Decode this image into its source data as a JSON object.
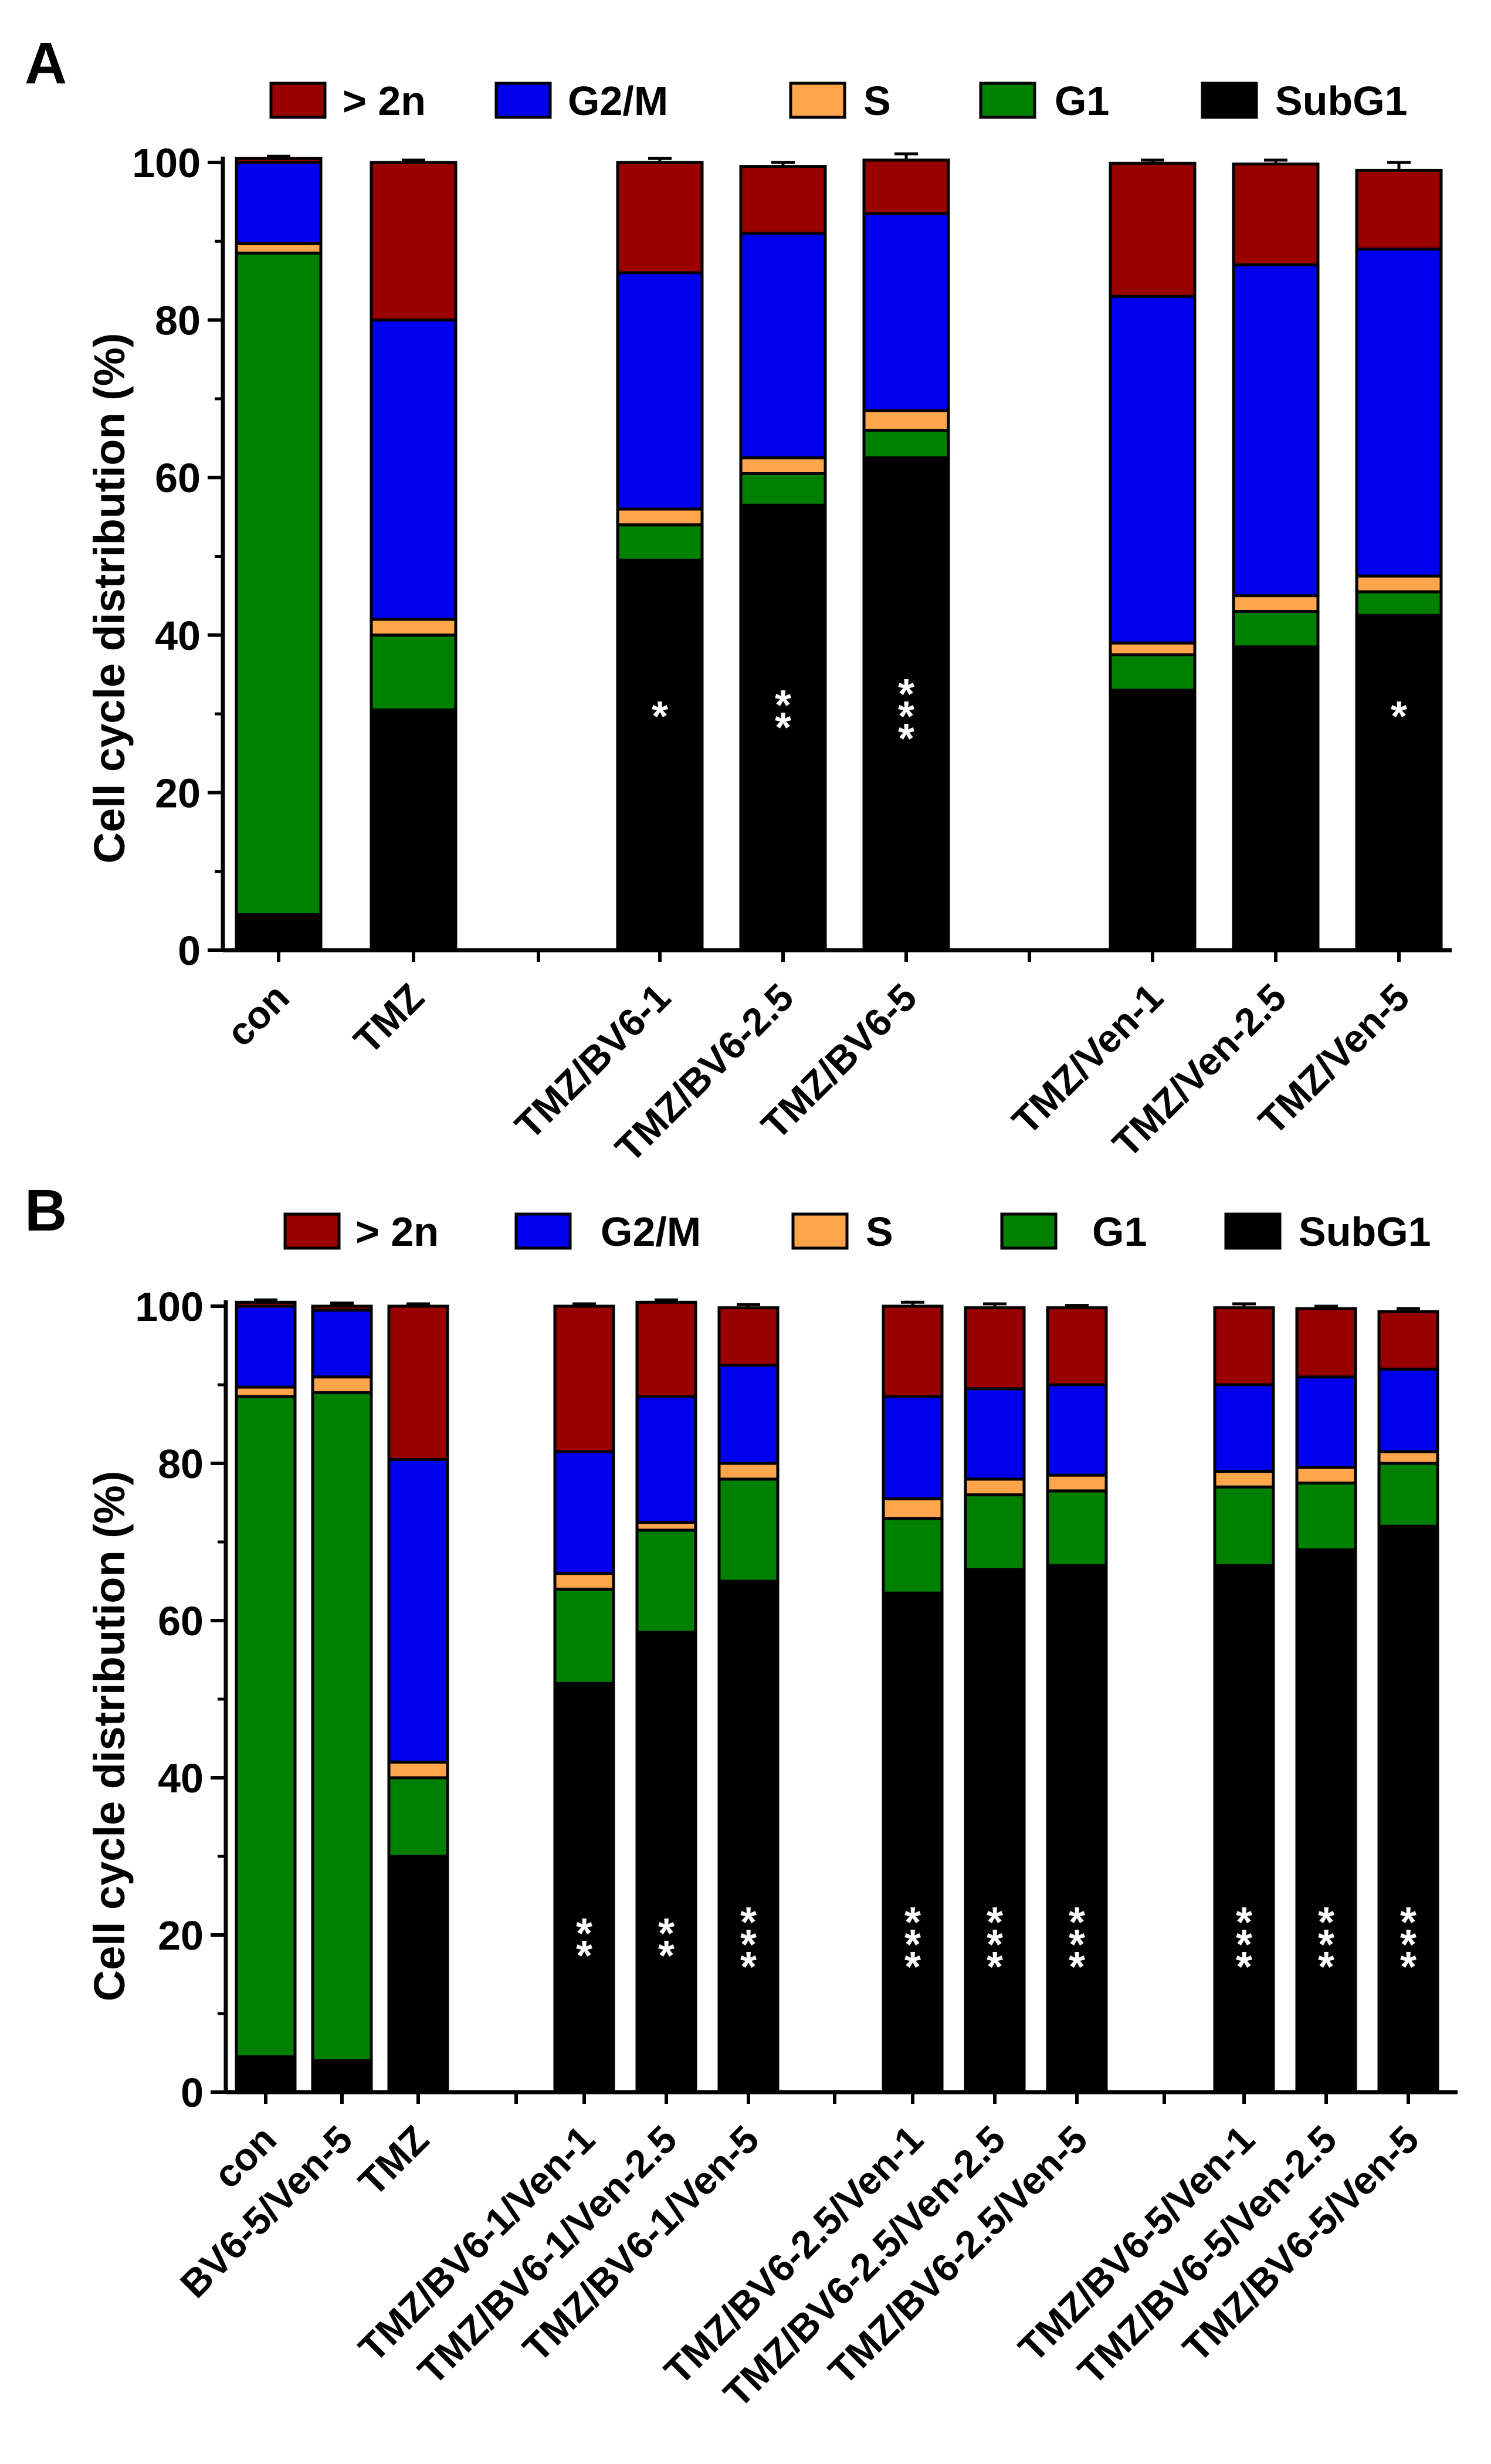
{
  "colors": {
    "above_2n": "#990000",
    "g2m": "#0000ee",
    "s": "#ffa64d",
    "g1": "#008000",
    "subg1": "#000000",
    "stars": "#ffffff",
    "axis": "#000000"
  },
  "legend": {
    "items": [
      {
        "key": "above_2n",
        "label": "> 2n"
      },
      {
        "key": "g2m",
        "label": "G2/M"
      },
      {
        "key": "s",
        "label": "S"
      },
      {
        "key": "g1",
        "label": "G1"
      },
      {
        "key": "subg1",
        "label": "SubG1"
      }
    ]
  },
  "chart_data": [
    {
      "panel_label": "A",
      "type": "bar",
      "stacked": true,
      "ylabel": "Cell cycle distribution (%)",
      "xlabel": "",
      "ylim": [
        0,
        100
      ],
      "yticks": [
        "0",
        "20",
        "40",
        "60",
        "80",
        "100"
      ],
      "layout_groups": [
        2,
        3,
        3
      ],
      "categories": [
        "con",
        "TMZ",
        "TMZ/BV6-1",
        "TMZ/BV6-2.5",
        "TMZ/BV6-5",
        "TMZ/Ven-1",
        "TMZ/Ven-2.5",
        "TMZ/Ven-5"
      ],
      "series": [
        {
          "name": "SubG1",
          "key": "subg1",
          "values": [
            4.5,
            30.5,
            49.5,
            56.5,
            62.5,
            33.0,
            38.5,
            42.5
          ],
          "errors": [
            0.4,
            1.8,
            1.0,
            1.0,
            0.5,
            0.8,
            0.4,
            0.5
          ]
        },
        {
          "name": "G1",
          "key": "g1",
          "values": [
            84.0,
            9.5,
            4.5,
            4.0,
            3.5,
            4.5,
            4.5,
            3.0
          ],
          "errors": [
            0.4,
            0.6,
            0.5,
            0.5,
            0.5,
            0.5,
            0.5,
            0.5
          ]
        },
        {
          "name": "S",
          "key": "s",
          "values": [
            1.2,
            2.0,
            2.0,
            2.0,
            2.5,
            1.5,
            2.0,
            2.0
          ],
          "errors": [
            0.3,
            0.5,
            0.5,
            0.5,
            0.7,
            0.4,
            0.5,
            0.5
          ]
        },
        {
          "name": "G2/M",
          "key": "g2m",
          "values": [
            10.3,
            38.0,
            30.0,
            28.5,
            25.0,
            44.0,
            42.0,
            41.5
          ],
          "errors": [
            0.0,
            0.6,
            1.8,
            0.6,
            0.8,
            0.6,
            0.6,
            0.6
          ]
        },
        {
          "name": "> 2n",
          "key": "above_2n",
          "values": [
            0.5,
            20.0,
            14.0,
            8.5,
            6.8,
            16.9,
            12.8,
            10.0
          ],
          "errors": [
            0.3,
            0.3,
            0.5,
            0.5,
            0.8,
            0.4,
            0.5,
            1.0
          ]
        }
      ],
      "significance": [
        "",
        "",
        "*",
        "**",
        "***",
        "",
        "",
        "*"
      ]
    },
    {
      "panel_label": "B",
      "type": "bar",
      "stacked": true,
      "ylabel": "Cell cycle distribution (%)",
      "xlabel": "",
      "ylim": [
        0,
        100
      ],
      "yticks": [
        "0",
        "20",
        "40",
        "60",
        "80",
        "100"
      ],
      "layout_groups": [
        3,
        3,
        3,
        3
      ],
      "categories": [
        "con",
        "BV6-5/Ven-5",
        "TMZ",
        "TMZ/BV6-1/Ven-1",
        "TMZ/BV6-1/Ven-2.5",
        "TMZ/BV6-1/Ven-5",
        "TMZ/BV6-2.5/Ven-1",
        "TMZ/BV6-2.5/Ven-2.5",
        "TMZ/BV6-2.5/Ven-5",
        "TMZ/BV6-5/Ven-1",
        "TMZ/BV6-5/Ven-2.5",
        "TMZ/BV6-5/Ven-5"
      ],
      "series": [
        {
          "name": "SubG1",
          "key": "subg1",
          "values": [
            4.5,
            4.0,
            30.0,
            52.0,
            58.5,
            65.0,
            63.5,
            66.5,
            67.0,
            67.0,
            69.0,
            72.0
          ],
          "errors": [
            0.4,
            0.4,
            0.8,
            1.0,
            0.8,
            0.6,
            0.4,
            1.3,
            0.8,
            0.8,
            0.4,
            0.6
          ]
        },
        {
          "name": "G1",
          "key": "g1",
          "values": [
            84.0,
            85.0,
            10.0,
            12.0,
            13.0,
            13.0,
            9.5,
            9.5,
            9.5,
            10.0,
            8.5,
            8.0
          ],
          "errors": [
            0.4,
            0.4,
            0.8,
            0.6,
            0.6,
            0.6,
            0.5,
            0.6,
            0.6,
            0.6,
            0.4,
            0.5
          ]
        },
        {
          "name": "S",
          "key": "s",
          "values": [
            1.2,
            2.0,
            2.0,
            2.0,
            1.0,
            2.0,
            2.5,
            2.0,
            2.0,
            2.0,
            2.0,
            1.5
          ],
          "errors": [
            0.5,
            0.6,
            0.6,
            0.5,
            0.4,
            0.5,
            0.5,
            0.5,
            0.5,
            0.5,
            0.5,
            0.4
          ]
        },
        {
          "name": "G2/M",
          "key": "g2m",
          "values": [
            10.3,
            8.5,
            38.5,
            15.5,
            16.0,
            12.5,
            13.0,
            11.5,
            11.5,
            11.0,
            11.5,
            10.5
          ],
          "errors": [
            0.0,
            0.6,
            0.6,
            0.4,
            0.6,
            0.5,
            0.4,
            0.8,
            0.5,
            0.5,
            0.8,
            0.8
          ]
        },
        {
          "name": "> 2n",
          "key": "above_2n",
          "values": [
            0.5,
            0.5,
            19.5,
            18.5,
            12.0,
            7.3,
            11.5,
            10.3,
            9.8,
            9.8,
            8.7,
            7.3
          ],
          "errors": [
            0.3,
            0.4,
            0.3,
            0.3,
            0.3,
            0.4,
            0.5,
            0.5,
            0.3,
            0.5,
            0.3,
            0.4
          ]
        }
      ],
      "significance": [
        "",
        "",
        "",
        "**",
        "**",
        "***",
        "***",
        "***",
        "***",
        "***",
        "***",
        "***"
      ]
    }
  ]
}
